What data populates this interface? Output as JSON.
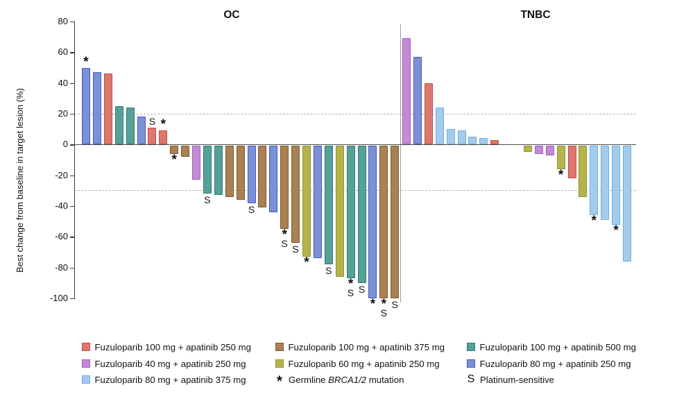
{
  "chart_data": {
    "type": "bar",
    "subtype": "waterfall",
    "ylabel": "Best change from baseline in target lesion (%)",
    "ylim": [
      -100,
      80
    ],
    "yticks": [
      80,
      60,
      40,
      20,
      0,
      -20,
      -40,
      -60,
      -80,
      -100
    ],
    "reference_lines": [
      20,
      -30
    ],
    "grid": false,
    "legend_position": "bottom",
    "treatments": {
      "fz100_ap250": {
        "label": "Fuzuloparib 100 mg + apatinib 250 mg",
        "fill": "#DD786F",
        "border": "#C14B44"
      },
      "fz40_ap250": {
        "label": "Fuzuloparib 40 mg + apatinib 250 mg",
        "fill": "#C28BD3",
        "border": "#A25CC4"
      },
      "fz80_ap375": {
        "label": "Fuzuloparib 80 mg + apatinib 375 mg",
        "fill": "#A5CBEC",
        "border": "#66AEE6"
      },
      "fz100_ap375": {
        "label": "Fuzuloparib 100 mg + apatinib 375 mg",
        "fill": "#A98152",
        "border": "#7C5A31"
      },
      "fz60_ap250": {
        "label": "Fuzuloparib 60 mg + apatinib 250 mg",
        "fill": "#B5B44A",
        "border": "#8E9430"
      },
      "fz100_ap500": {
        "label": "Fuzuloparib 100 mg + apatinib 500 mg",
        "fill": "#55A098",
        "border": "#2F7C72"
      },
      "fz80_ap250": {
        "label": "Fuzuloparib 80 mg + apatinib 250 mg",
        "fill": "#7B91D5",
        "border": "#4B55C4"
      }
    },
    "markers": {
      "brca": {
        "symbol": "*",
        "label_prefix": "Germline ",
        "label_italic": "BRCA1/2",
        "label_suffix": " mutation"
      },
      "platinum": {
        "symbol": "S",
        "label": "Platinum-sensitive"
      }
    },
    "panels": [
      {
        "name": "OC",
        "bars": [
          {
            "value": 50,
            "treatment": "fz80_ap250",
            "marks": [
              "*"
            ]
          },
          {
            "value": 47,
            "treatment": "fz80_ap250"
          },
          {
            "value": 46,
            "treatment": "fz100_ap250"
          },
          {
            "value": 25,
            "treatment": "fz100_ap500"
          },
          {
            "value": 24,
            "treatment": "fz100_ap500"
          },
          {
            "value": 18,
            "treatment": "fz80_ap250"
          },
          {
            "value": 11,
            "treatment": "fz100_ap250",
            "marks": [
              "S"
            ]
          },
          {
            "value": 9,
            "treatment": "fz100_ap250",
            "marks": [
              "*"
            ]
          },
          {
            "value": -6,
            "treatment": "fz100_ap375",
            "marks": [
              "*"
            ]
          },
          {
            "value": -8,
            "treatment": "fz100_ap375"
          },
          {
            "value": -23,
            "treatment": "fz40_ap250"
          },
          {
            "value": -32,
            "treatment": "fz100_ap500",
            "marks": [
              "S"
            ]
          },
          {
            "value": -33,
            "treatment": "fz100_ap500"
          },
          {
            "value": -34,
            "treatment": "fz100_ap375"
          },
          {
            "value": -36,
            "treatment": "fz100_ap375"
          },
          {
            "value": -38,
            "treatment": "fz80_ap250",
            "marks": [
              "S"
            ]
          },
          {
            "value": -41,
            "treatment": "fz100_ap375"
          },
          {
            "value": -44,
            "treatment": "fz80_ap250"
          },
          {
            "value": -55,
            "treatment": "fz100_ap375",
            "marks": [
              "*",
              "S"
            ]
          },
          {
            "value": -64,
            "treatment": "fz100_ap375",
            "marks": [
              "S"
            ]
          },
          {
            "value": -73,
            "treatment": "fz60_ap250",
            "marks": [
              "*"
            ]
          },
          {
            "value": -74,
            "treatment": "fz80_ap250"
          },
          {
            "value": -78,
            "treatment": "fz100_ap500",
            "marks": [
              "S"
            ]
          },
          {
            "value": -86,
            "treatment": "fz60_ap250"
          },
          {
            "value": -87,
            "treatment": "fz100_ap500",
            "marks": [
              "*",
              "S"
            ]
          },
          {
            "value": -90,
            "treatment": "fz100_ap500",
            "marks": [
              "S"
            ]
          },
          {
            "value": -100,
            "treatment": "fz80_ap250",
            "marks": [
              "*"
            ]
          },
          {
            "value": -100,
            "treatment": "fz100_ap375",
            "marks": [
              "*",
              "S"
            ]
          },
          {
            "value": -100,
            "treatment": "fz100_ap375",
            "marks": [
              "S"
            ]
          }
        ]
      },
      {
        "name": "TNBC",
        "gap_after_index": 8,
        "gap_slots": 2,
        "bars": [
          {
            "value": 69,
            "treatment": "fz40_ap250"
          },
          {
            "value": 57,
            "treatment": "fz80_ap250"
          },
          {
            "value": 40,
            "treatment": "fz100_ap250"
          },
          {
            "value": 24,
            "treatment": "fz80_ap375"
          },
          {
            "value": 10,
            "treatment": "fz80_ap375"
          },
          {
            "value": 9,
            "treatment": "fz80_ap375"
          },
          {
            "value": 5,
            "treatment": "fz80_ap375"
          },
          {
            "value": 4,
            "treatment": "fz80_ap375"
          },
          {
            "value": 3,
            "treatment": "fz100_ap250"
          },
          {
            "value": -5,
            "treatment": "fz60_ap250"
          },
          {
            "value": -6,
            "treatment": "fz40_ap250"
          },
          {
            "value": -7,
            "treatment": "fz40_ap250"
          },
          {
            "value": -16,
            "treatment": "fz60_ap250",
            "marks": [
              "*"
            ]
          },
          {
            "value": -22,
            "treatment": "fz100_ap250"
          },
          {
            "value": -34,
            "treatment": "fz60_ap250"
          },
          {
            "value": -46,
            "treatment": "fz80_ap375",
            "marks": [
              "*"
            ]
          },
          {
            "value": -49,
            "treatment": "fz80_ap375"
          },
          {
            "value": -52,
            "treatment": "fz80_ap375",
            "marks": [
              "*"
            ]
          },
          {
            "value": -76,
            "treatment": "fz80_ap375"
          }
        ]
      }
    ],
    "legend_columns": [
      [
        "fz100_ap250",
        "fz40_ap250",
        "fz80_ap375"
      ],
      [
        "fz100_ap375",
        "fz60_ap250",
        "marker:brca"
      ],
      [
        "fz100_ap500",
        "fz80_ap250",
        "marker:platinum"
      ]
    ]
  }
}
